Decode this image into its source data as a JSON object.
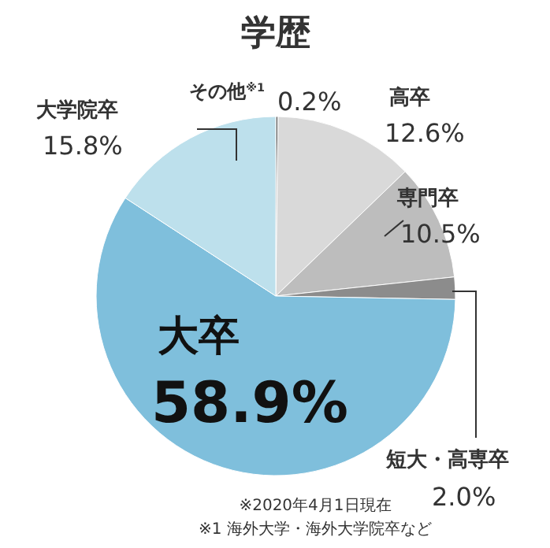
{
  "chart_data": {
    "type": "pie",
    "title": "学歴",
    "categories": [
      "その他$^{※1}$",
      "高卒",
      "専門卒",
      "短大・高専卒",
      "大卒",
      "大学院卒"
    ],
    "values": [
      0.2,
      12.6,
      10.5,
      2.0,
      58.9,
      15.8
    ],
    "colors": [
      "#555555",
      "#d9d9d9",
      "#bdbdbd",
      "#8c8c8c",
      "#7fbfdc",
      "#bde0ec"
    ],
    "value_labels": [
      "0.2%",
      "12.6%",
      "10.5%",
      "2.0%",
      "58.9%",
      "15.8%"
    ],
    "annotations": [
      "※2020年4月1日現在",
      "※1 海外大学・海外大学院卒など"
    ]
  }
}
